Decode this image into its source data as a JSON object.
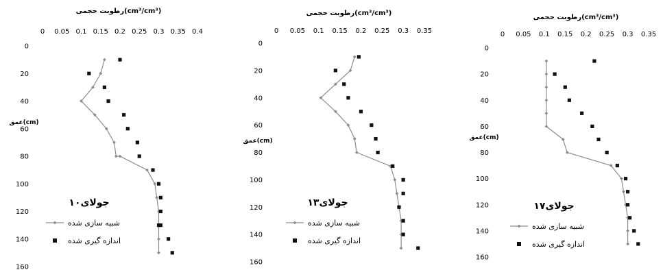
{
  "chart_data": [
    {
      "type": "line",
      "title": "رطوبت حجمی(cm³/cm³)",
      "ylabel": "عمق(cm)",
      "annotation": "۱۰جولای",
      "xlim": [
        0,
        0.4
      ],
      "ylim": [
        0,
        160
      ],
      "y_reversed": true,
      "grid": false,
      "legend_position": "bottom-left",
      "xticks": [
        "0",
        "0.05",
        "0.1",
        "0.15",
        "0.2",
        "0.25",
        "0.3",
        "0.35",
        "0.4"
      ],
      "yticks": [
        "0",
        "20",
        "40",
        "60",
        "80",
        "100",
        "120",
        "140",
        "160"
      ],
      "series": [
        {
          "name": "شبیه سازی شده",
          "style": "line-diamond",
          "color": "#8c8c8c",
          "x": [
            0.16,
            0.15,
            0.13,
            0.1,
            0.135,
            0.165,
            0.185,
            0.19,
            0.2,
            0.27,
            0.29,
            0.295,
            0.3,
            0.3,
            0.3,
            0.3
          ],
          "y": [
            10,
            20,
            30,
            40,
            50,
            60,
            70,
            80,
            80,
            90,
            100,
            110,
            120,
            130,
            140,
            150
          ]
        },
        {
          "name": "اندازه گیری شده",
          "style": "square-marker",
          "color": "#111111",
          "x": [
            0.2,
            0.12,
            0.16,
            0.17,
            0.21,
            0.22,
            0.245,
            0.25,
            0.285,
            0.3,
            0.305,
            0.305,
            0.305,
            0.3,
            0.325,
            0.335
          ],
          "y": [
            10,
            20,
            30,
            40,
            50,
            60,
            70,
            80,
            90,
            100,
            110,
            120,
            130,
            130,
            140,
            150
          ]
        }
      ]
    },
    {
      "type": "line",
      "title": "رطوبت حجمی(cm³/cm³)",
      "ylabel": "عمق(cm)",
      "annotation": "۱۳جولای",
      "xlim": [
        0,
        0.35
      ],
      "ylim": [
        0,
        160
      ],
      "y_reversed": true,
      "grid": false,
      "legend_position": "bottom-left",
      "xticks": [
        "0",
        "0.05",
        "0.1",
        "0.15",
        "0.2",
        "0.25",
        "0.3",
        "0.35"
      ],
      "yticks": [
        "0",
        "20",
        "40",
        "60",
        "80",
        "100",
        "120",
        "140",
        "160"
      ],
      "series": [
        {
          "name": "شبیه سازی شده",
          "style": "line-diamond",
          "color": "#8c8c8c",
          "x": [
            0.185,
            0.175,
            0.14,
            0.105,
            0.14,
            0.17,
            0.185,
            0.19,
            0.27,
            0.28,
            0.285,
            0.29,
            0.295,
            0.295,
            0.295
          ],
          "y": [
            10,
            20,
            30,
            40,
            50,
            60,
            70,
            80,
            90,
            100,
            110,
            120,
            130,
            140,
            150
          ]
        },
        {
          "name": "اندازه گیری شده",
          "style": "square-marker",
          "color": "#111111",
          "x": [
            0.195,
            0.14,
            0.16,
            0.17,
            0.2,
            0.225,
            0.235,
            0.24,
            0.275,
            0.3,
            0.3,
            0.29,
            0.3,
            0.3,
            0.335
          ],
          "y": [
            10,
            20,
            30,
            40,
            50,
            60,
            70,
            80,
            90,
            100,
            110,
            120,
            130,
            140,
            150
          ]
        }
      ]
    },
    {
      "type": "line",
      "title": "رطوبت حجمی(cm³/cm³)",
      "ylabel": "عمق(cm)",
      "annotation": "۱۷جولای",
      "xlim": [
        0,
        0.35
      ],
      "ylim": [
        0,
        160
      ],
      "y_reversed": true,
      "grid": false,
      "legend_position": "bottom-left",
      "xticks": [
        "0",
        "0.05",
        "0.1",
        "0.15",
        "0.2",
        "0.25",
        "0.3",
        "0.35"
      ],
      "yticks": [
        "0",
        "20",
        "40",
        "60",
        "80",
        "100",
        "120",
        "140",
        "160"
      ],
      "series": [
        {
          "name": "شبیه سازی شده",
          "style": "line-diamond",
          "color": "#8c8c8c",
          "x": [
            0.105,
            0.105,
            0.105,
            0.105,
            0.105,
            0.105,
            0.145,
            0.155,
            0.26,
            0.285,
            0.29,
            0.295,
            0.3,
            0.3,
            0.3
          ],
          "y": [
            10,
            20,
            30,
            40,
            50,
            60,
            70,
            80,
            90,
            100,
            110,
            120,
            130,
            140,
            150
          ]
        },
        {
          "name": "اندازه گیری شده",
          "style": "square-marker",
          "color": "#111111",
          "x": [
            0.22,
            0.125,
            0.15,
            0.16,
            0.19,
            0.215,
            0.23,
            0.25,
            0.275,
            0.295,
            0.3,
            0.3,
            0.305,
            0.315,
            0.325
          ],
          "y": [
            10,
            20,
            30,
            40,
            50,
            60,
            70,
            80,
            90,
            100,
            110,
            120,
            130,
            140,
            150
          ]
        }
      ]
    }
  ]
}
